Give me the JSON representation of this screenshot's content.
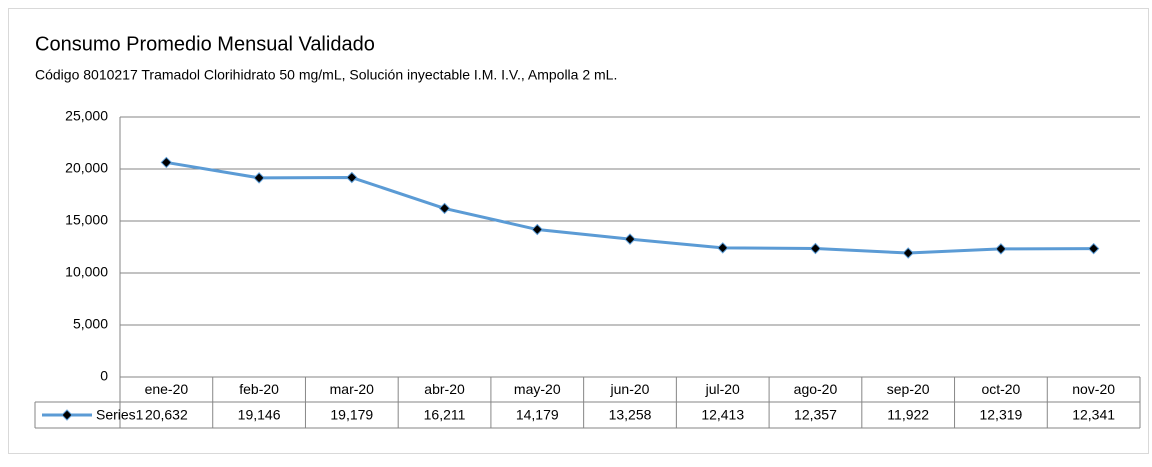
{
  "chart_data": {
    "type": "line",
    "title": "Consumo Promedio Mensual Validado",
    "subtitle": "Código 8010217 Tramadol Clorihidrato 50 mg/mL, Solución inyectable I.M. I.V., Ampolla 2 mL.",
    "categories": [
      "ene-20",
      "feb-20",
      "mar-20",
      "abr-20",
      "may-20",
      "jun-20",
      "jul-20",
      "ago-20",
      "sep-20",
      "oct-20",
      "nov-20"
    ],
    "series": [
      {
        "name": "Series1",
        "color": "#5b9bd5",
        "marker_color": "#000000",
        "values": [
          20632,
          19146,
          19179,
          16211,
          14179,
          13258,
          12413,
          12357,
          11922,
          12319,
          12341
        ],
        "value_labels": [
          "20,632",
          "19,146",
          "19,179",
          "16,211",
          "14,179",
          "13,258",
          "12,413",
          "12,357",
          "11,922",
          "12,319",
          "12,341"
        ]
      }
    ],
    "ylim": [
      0,
      25000
    ],
    "yticks": [
      0,
      {
        "value": 5000,
        "label": "5,000"
      },
      {
        "value": 10000,
        "label": "10,000"
      },
      {
        "value": 15000,
        "label": "15,000"
      },
      {
        "value": 20000,
        "label": "20,000"
      },
      {
        "value": 25000,
        "label": "25,000"
      }
    ],
    "grid": true
  }
}
